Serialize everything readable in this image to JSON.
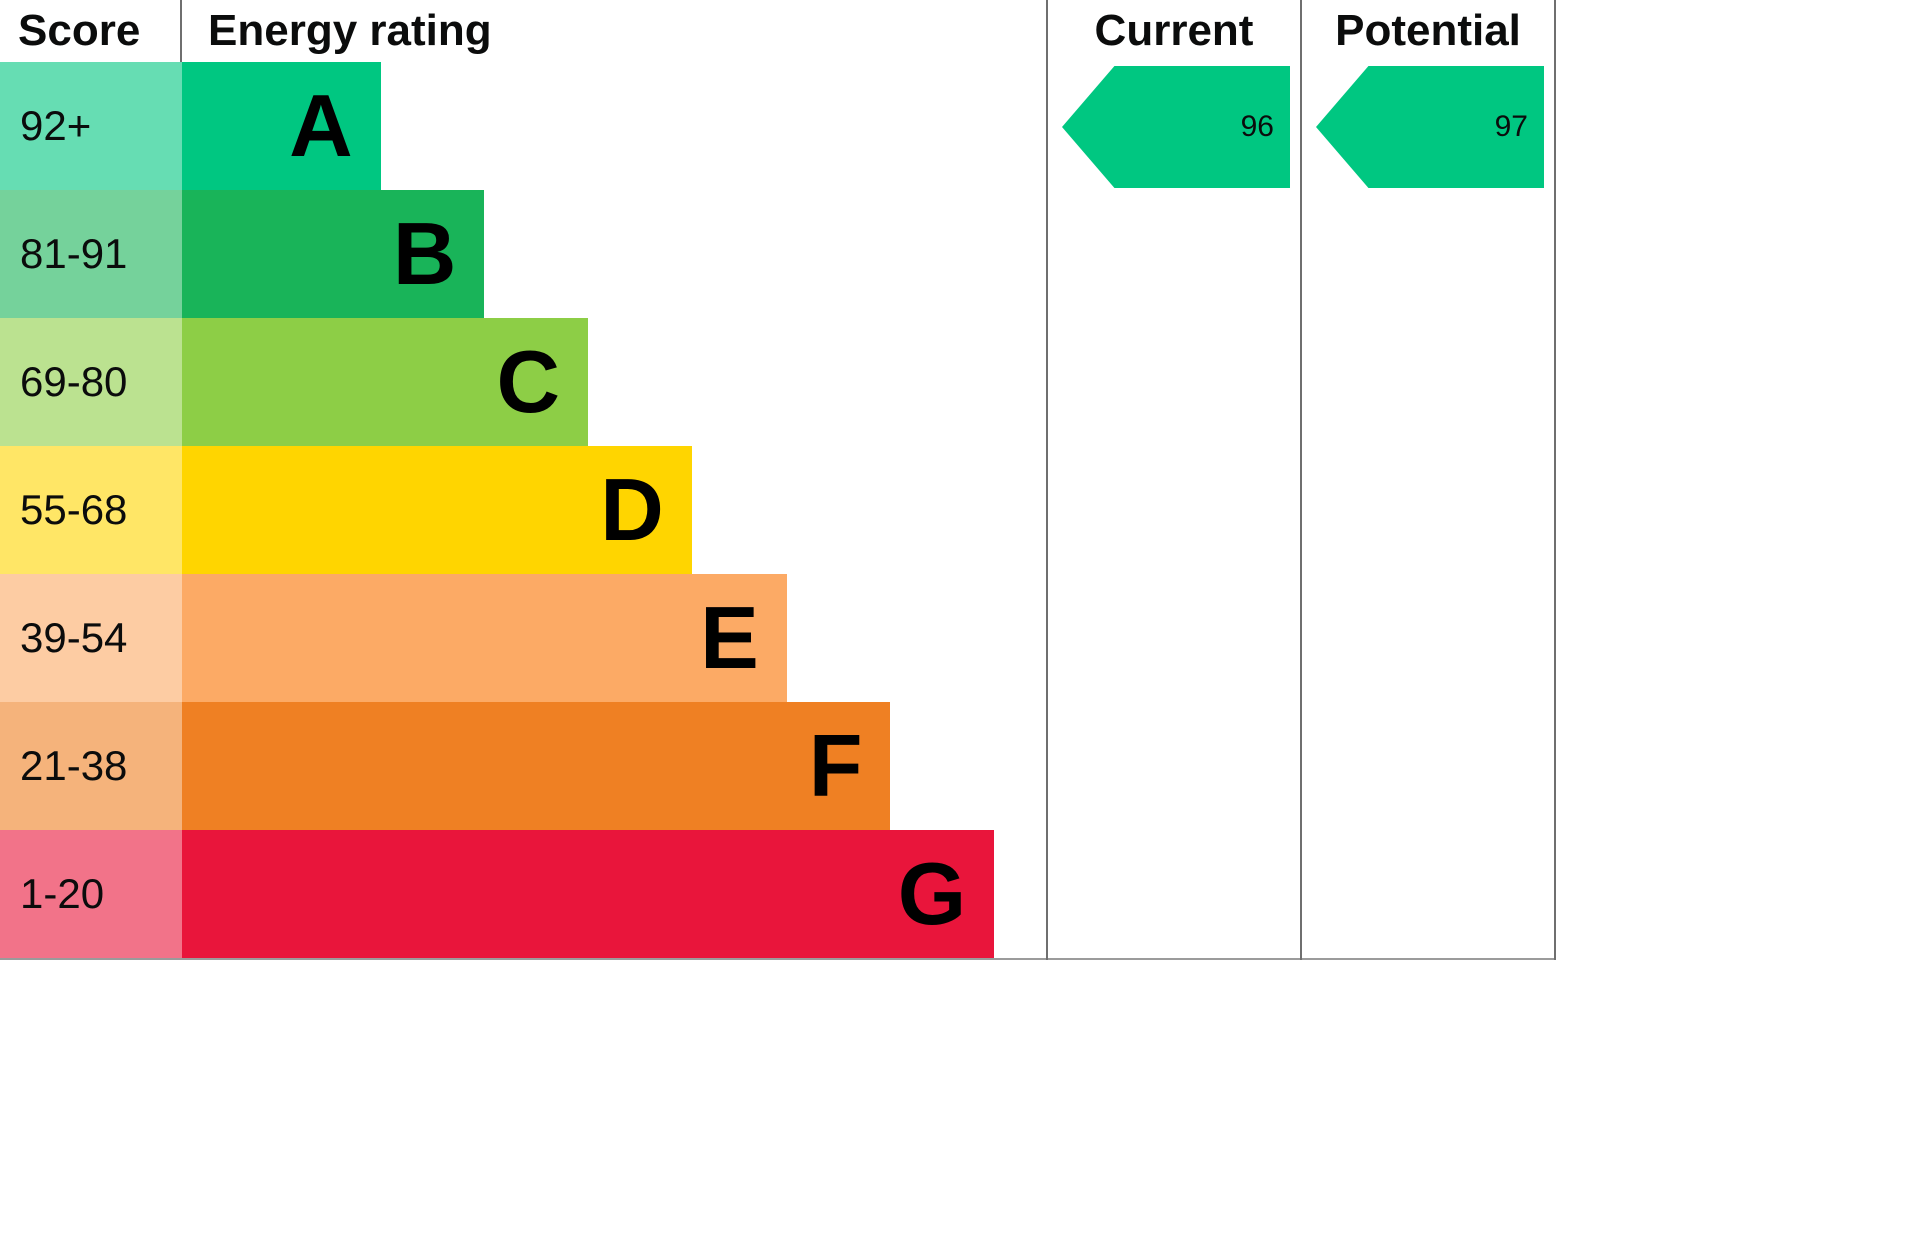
{
  "header": {
    "score_label": "Score",
    "rating_label": "Energy rating",
    "current_label": "Current",
    "potential_label": "Potential"
  },
  "chart_data": {
    "type": "bar",
    "title": "EPC energy efficiency rating chart",
    "categories": [
      "A",
      "B",
      "C",
      "D",
      "E",
      "F",
      "G"
    ],
    "bands": [
      {
        "letter": "A",
        "score_range": "92+",
        "color": "#00c781",
        "score_bg": "#66ddb3",
        "width_pct": 23
      },
      {
        "letter": "B",
        "score_range": "81-91",
        "color": "#19b459",
        "score_bg": "#75d29b",
        "width_pct": 35
      },
      {
        "letter": "C",
        "score_range": "69-80",
        "color": "#8dce46",
        "score_bg": "#bbe290",
        "width_pct": 47
      },
      {
        "letter": "D",
        "score_range": "55-68",
        "color": "#ffd500",
        "score_bg": "#ffe666",
        "width_pct": 59
      },
      {
        "letter": "E",
        "score_range": "39-54",
        "color": "#fcaa65",
        "score_bg": "#fdcca3",
        "width_pct": 70
      },
      {
        "letter": "F",
        "score_range": "21-38",
        "color": "#ef8023",
        "score_bg": "#f5b37b",
        "width_pct": 82
      },
      {
        "letter": "G",
        "score_range": "1-20",
        "color": "#e9153b",
        "score_bg": "#f27389",
        "width_pct": 94
      }
    ],
    "current": {
      "value": "96",
      "band": "A",
      "arrow_color": "#00c781"
    },
    "potential": {
      "value": "97",
      "band": "A",
      "arrow_color": "#00c781"
    }
  }
}
